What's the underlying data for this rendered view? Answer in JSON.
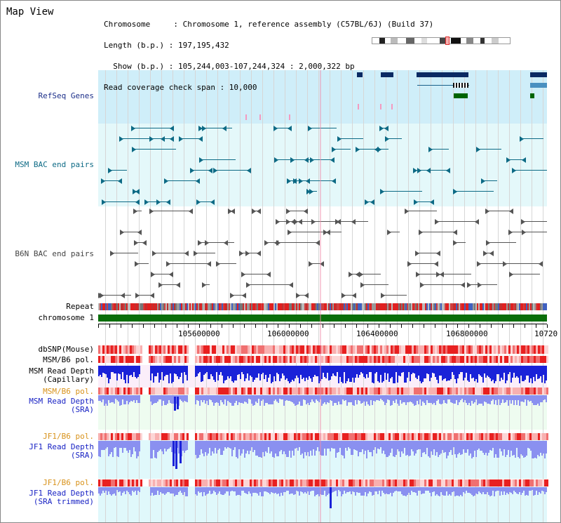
{
  "view_title": "Map View",
  "info": {
    "line1": "Chromosome     : Chromosome 1, reference assembly (C57BL/6J) (Build 37)",
    "line2": "Length (b.p.) : 197,195,432",
    "line3": "  Show (b.p.) : 105,244,003-107,244,324 : 2,000,322 bp",
    "line4": "Read coverage check span : 10,000"
  },
  "tracks": {
    "refseq": "RefSeq Genes",
    "msm_bac": "MSM BAC end pairs",
    "b6n_bac": "B6N BAC end pairs",
    "repeat": "Repeat",
    "chromosome": "chromosome 1",
    "dbsnp": "dbSNP(Mouse)",
    "msm_b6_pol_1": "MSM/B6 pol.",
    "msm_read_depth_cap": "MSM Read Depth\n(Capillary)",
    "msm_b6_pol_2": "MSM/B6 pol.",
    "msm_read_depth_sra": "MSM Read Depth\n(SRA)",
    "jf1_b6_pol_1": "JF1/B6 pol.",
    "jf1_read_depth_sra": "JF1 Read Depth\n(SRA)",
    "jf1_b6_pol_2": "JF1/B6 pol.",
    "jf1_read_depth_trim": "JF1 Read Depth\n(SRA trimmed)"
  },
  "axis": {
    "ticks": [
      "105600000",
      "106000000",
      "106400000",
      "106800000",
      "10720"
    ]
  },
  "colors": {
    "refseq_bg": "#cfeef9",
    "msm_bg": "#e4f8fa",
    "b6n_bg": "#ffffff",
    "chrom_bar": "#0a6e0a",
    "gene_navy": "#0b2a63",
    "gene_green": "#006400",
    "msm_glyph": "#0d6a85",
    "b6n_glyph": "#555555",
    "depth_blue": "#1a22d8",
    "depth_light": "#8a90f0",
    "pol_red": "#e83030"
  }
}
